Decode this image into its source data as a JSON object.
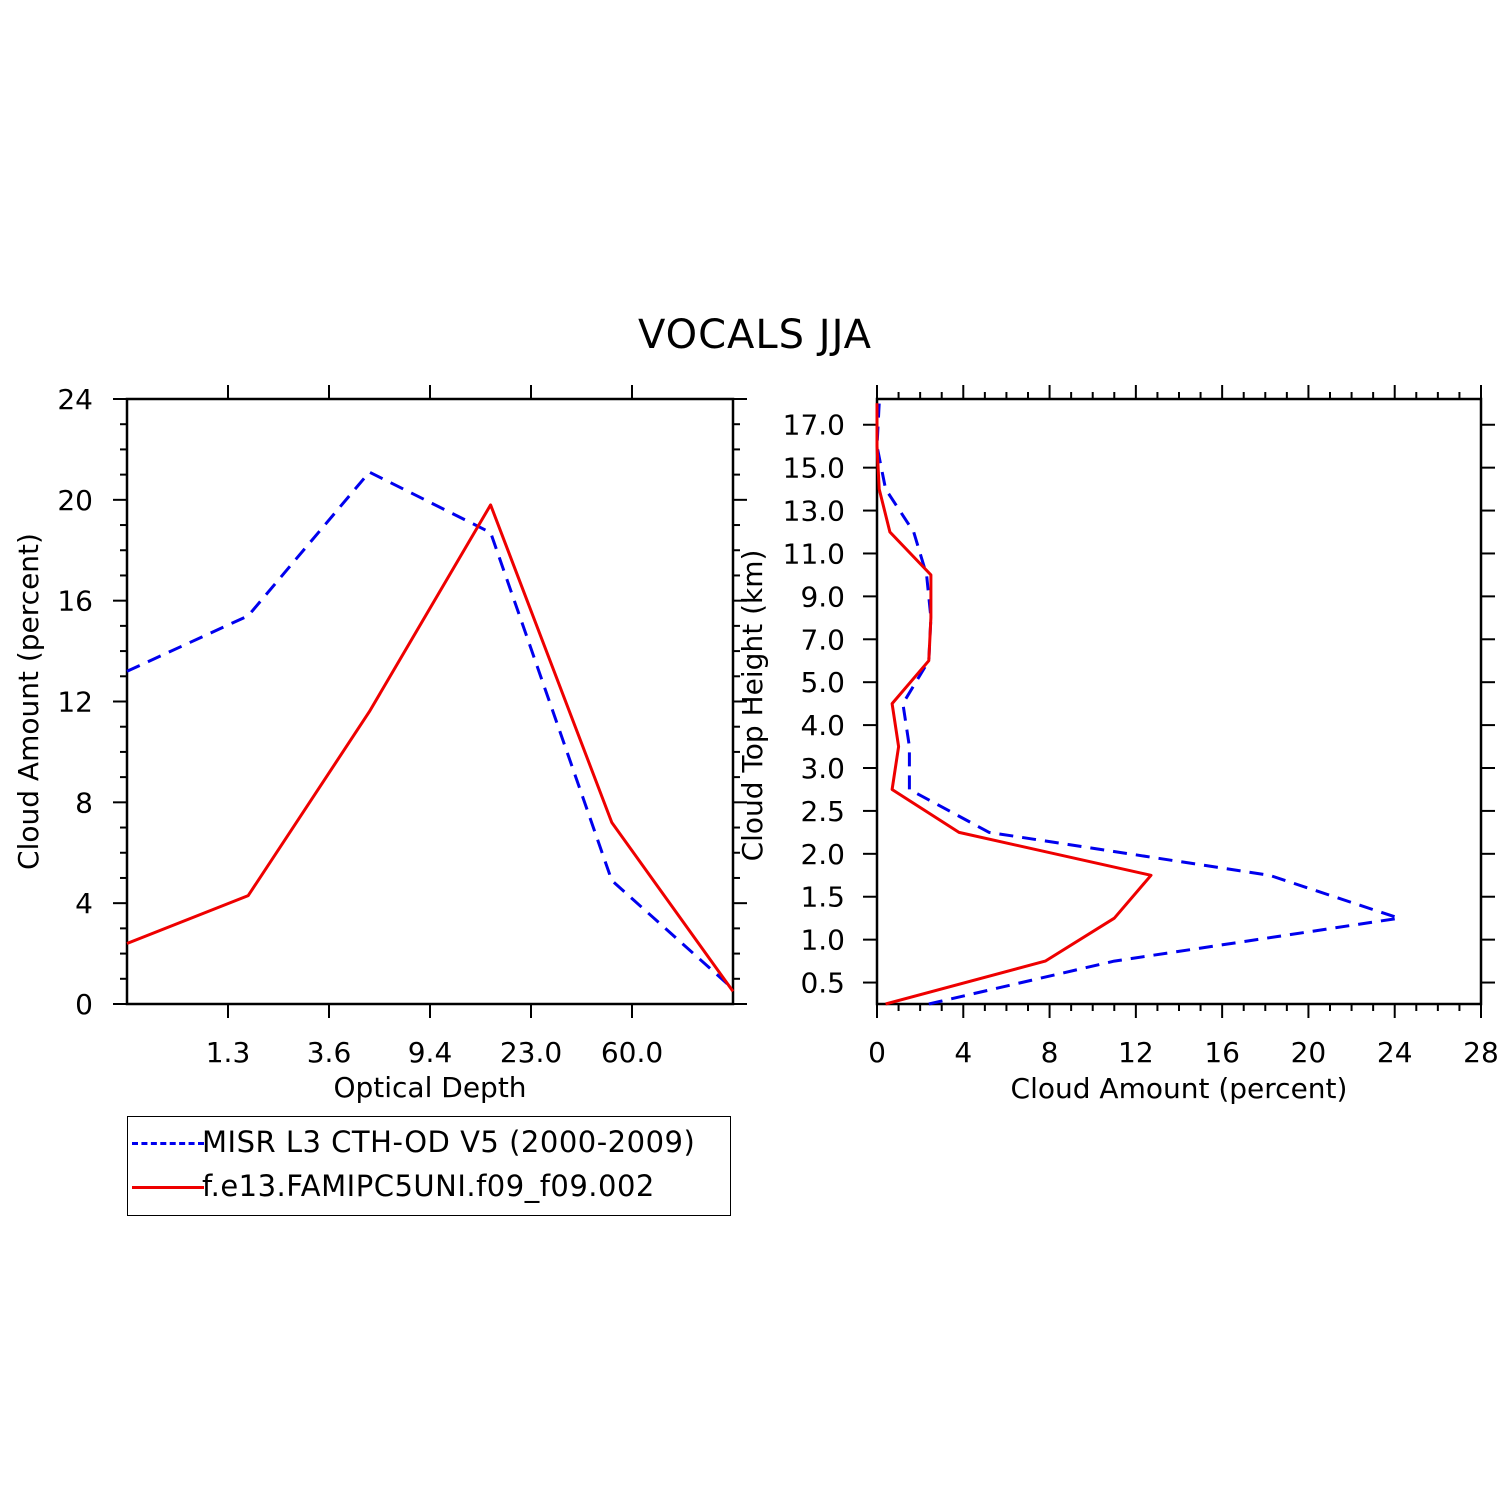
{
  "title": "VOCALS JJA",
  "colors": {
    "obs": "#0000ee",
    "model": "#ee0000",
    "axis": "#000000"
  },
  "chart_data": [
    {
      "type": "line",
      "xlabel": "Optical Depth",
      "ylabel": "Cloud Amount (percent)",
      "ylim": [
        0,
        24
      ],
      "yticks": [
        "0",
        "4",
        "8",
        "12",
        "16",
        "20",
        "24"
      ],
      "xticks": [
        "1.3",
        "3.6",
        "9.4",
        "23.0",
        "60.0"
      ],
      "grid": false,
      "series": [
        {
          "name": "MISR L3 CTH-OD V5 (2000-2009)",
          "style": "dashed",
          "values": [
            13.2,
            15.4,
            21.1,
            18.7,
            4.9,
            0.6
          ]
        },
        {
          "name": "f.e13.FAMIPC5UNI.f09_f09.002",
          "style": "solid",
          "values": [
            2.4,
            4.3,
            11.6,
            19.8,
            7.2,
            0.5
          ]
        }
      ]
    },
    {
      "type": "line",
      "xlabel": "Cloud Amount (percent)",
      "ylabel": "Cloud Top Height (km)",
      "xlim": [
        0,
        28
      ],
      "xticks": [
        "0",
        "4",
        "8",
        "12",
        "16",
        "20",
        "24",
        "28"
      ],
      "yticks": [
        "0.5",
        "1.0",
        "1.5",
        "2.0",
        "2.5",
        "3.0",
        "4.0",
        "5.0",
        "7.0",
        "9.0",
        "11.0",
        "13.0",
        "15.0",
        "17.0"
      ],
      "grid": false,
      "series": [
        {
          "name": "MISR L3 CTH-OD V5 (2000-2009)",
          "style": "dashed",
          "values": [
            2.4,
            11.0,
            24.2,
            18.2,
            5.2,
            1.5,
            1.5,
            1.2,
            2.4,
            2.5,
            2.3,
            1.7,
            0.4,
            0.0,
            0.1
          ]
        },
        {
          "name": "f.e13.FAMIPC5UNI.f09_f09.002",
          "style": "solid",
          "values": [
            0.4,
            7.8,
            11.0,
            12.7,
            3.8,
            0.7,
            1.0,
            0.7,
            2.4,
            2.5,
            2.5,
            0.6,
            0.1,
            0.0,
            0.0
          ]
        }
      ]
    }
  ]
}
